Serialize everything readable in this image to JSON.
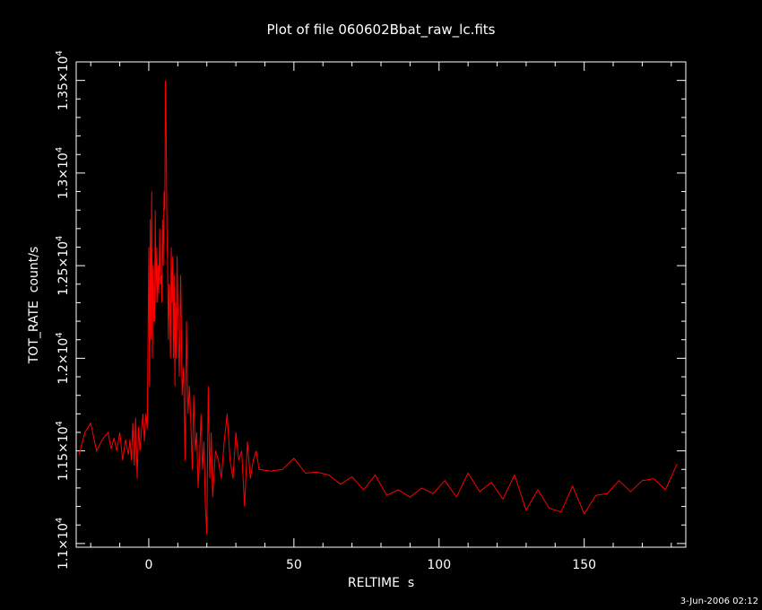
{
  "chart_data": {
    "type": "line",
    "title": "Plot of file 060602Bbat_raw_lc.fits",
    "xlabel": "RELTIME  s",
    "ylabel": "TOT_RATE  count/s",
    "xlim": [
      -25,
      185
    ],
    "ylim": [
      10980,
      13600
    ],
    "grid": false,
    "x_ticks": [
      0,
      50,
      100,
      150
    ],
    "x_tick_labels": [
      "0",
      "50",
      "100",
      "150"
    ],
    "y_ticks": [
      11000,
      11500,
      12000,
      12500,
      13000,
      13500
    ],
    "y_tick_mantissa": [
      "1.1",
      "1.15",
      "1.2",
      "1.25",
      "1.3",
      "1.35"
    ],
    "y_tick_exponent": "4",
    "series": [
      {
        "color": "#ff0000",
        "x": [
          -24,
          -22,
          -20,
          -18,
          -16,
          -14,
          -13,
          -12,
          -11,
          -10,
          -9,
          -8,
          -7,
          -6.5,
          -6,
          -5.5,
          -5,
          -4.5,
          -4,
          -3.5,
          -3,
          -2.5,
          -2,
          -1.5,
          -1,
          -0.5,
          0,
          0.25,
          0.5,
          0.75,
          1,
          1.25,
          1.5,
          1.75,
          2,
          2.25,
          2.5,
          2.75,
          3,
          3.25,
          3.5,
          3.75,
          4,
          4.25,
          4.5,
          4.75,
          5,
          5.25,
          5.5,
          5.75,
          6,
          6.25,
          6.5,
          6.75,
          7,
          7.25,
          7.5,
          7.75,
          8,
          8.25,
          8.5,
          8.75,
          9,
          9.25,
          9.5,
          9.75,
          10,
          10.5,
          11,
          11.5,
          12,
          12.5,
          13,
          13.5,
          14,
          14.5,
          15,
          15.5,
          16,
          16.5,
          17,
          17.5,
          18,
          18.5,
          19,
          19.5,
          20,
          20.5,
          21,
          21.5,
          22,
          23,
          24,
          25,
          26,
          27,
          28,
          29,
          30,
          31,
          32,
          33,
          34,
          35,
          36,
          37,
          38,
          42,
          46,
          50,
          54,
          58,
          62,
          66,
          70,
          74,
          78,
          82,
          86,
          90,
          94,
          98,
          102,
          106,
          110,
          114,
          118,
          122,
          126,
          130,
          134,
          138,
          142,
          146,
          150,
          154,
          158,
          162,
          166,
          170,
          174,
          178,
          182
        ],
        "y": [
          11480,
          11600,
          11650,
          11500,
          11560,
          11600,
          11510,
          11570,
          11500,
          11600,
          11450,
          11560,
          11480,
          11560,
          11450,
          11650,
          11420,
          11680,
          11350,
          11630,
          11500,
          11620,
          11700,
          11550,
          11700,
          11620,
          12600,
          11850,
          12750,
          12100,
          12900,
          12000,
          12500,
          12200,
          12200,
          12800,
          12300,
          12600,
          12300,
          12500,
          12350,
          12700,
          12400,
          12450,
          12300,
          12750,
          12500,
          12900,
          12800,
          13500,
          13200,
          12700,
          12500,
          12100,
          12400,
          12200,
          12000,
          12600,
          12300,
          12550,
          12000,
          12450,
          11850,
          12300,
          12000,
          12550,
          12300,
          11900,
          12450,
          11800,
          11950,
          11450,
          12200,
          11700,
          11850,
          11650,
          11400,
          11800,
          11500,
          11600,
          11300,
          11450,
          11700,
          11400,
          11550,
          11200,
          11050,
          11850,
          11350,
          11600,
          11250,
          11500,
          11450,
          11350,
          11550,
          11700,
          11450,
          11350,
          11600,
          11450,
          11500,
          11200,
          11550,
          11350,
          11450,
          11500,
          11400,
          11390,
          11400,
          11460,
          11380,
          11385,
          11370,
          11320,
          11360,
          11290,
          11370,
          11260,
          11290,
          11250,
          11300,
          11270,
          11340,
          11250,
          11380,
          11280,
          11330,
          11240,
          11370,
          11180,
          11290,
          11190,
          11170,
          11310,
          11160,
          11260,
          11270,
          11340,
          11280,
          11340,
          11350,
          11290,
          11430
        ]
      }
    ]
  },
  "footer": "3-Jun-2006 02:12"
}
